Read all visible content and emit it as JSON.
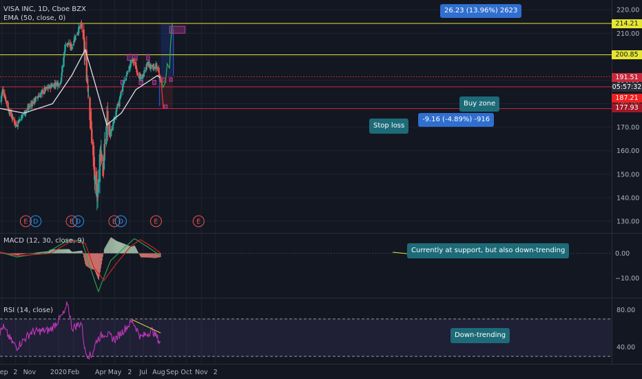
{
  "panes": {
    "price": {
      "title": "VISA INC, 1D, Cboe BZX",
      "indicator": "EMA (50, close, 0)"
    },
    "macd": {
      "title": "MACD (12, 30, close, 9)"
    },
    "rsi": {
      "title": "RSI (14, close)"
    }
  },
  "annotations": {
    "profit_box": "26.23 (13.96%) 2623",
    "loss_box": "-9.16 (-4.89%) -916",
    "buy_zone": "Buy zone",
    "stop_loss": "Stop loss",
    "macd_note": "Currently at support, but also down-trending",
    "rsi_note": "Down-trending"
  },
  "price_labels": {
    "top_line": "214.21",
    "resistance": "200.85",
    "current": "191.51",
    "countdown": "05:57:32",
    "support": "187.21",
    "stop": "177.93"
  },
  "colors": {
    "background": "#131722",
    "up": "#26a69a",
    "down": "#ef5350",
    "ema": "#e0e3eb",
    "yellow_line": "#e6e632",
    "red_line": "#c8283c",
    "macd_line": "#2e9e4f",
    "signal_line": "#c82828",
    "rsi_line": "#c238b8",
    "earnings_marker": "#ef5350",
    "dividend_marker": "#2196f3"
  },
  "events": [
    {
      "x": "2019-10-24",
      "letter": "E"
    },
    {
      "x": "2019-11-14",
      "letter": "D"
    },
    {
      "x": "2020-01-30",
      "letter": "E"
    },
    {
      "x": "2020-02-13",
      "letter": "D"
    },
    {
      "x": "2020-04-30",
      "letter": "E"
    },
    {
      "x": "2020-05-14",
      "letter": "D"
    },
    {
      "x": "2020-07-28",
      "letter": "E"
    },
    {
      "x": "2020-10-27",
      "letter": "E"
    }
  ],
  "chart_data": [
    {
      "type": "candlestick",
      "title": "VISA INC, 1D, Cboe BZX",
      "x_axis": {
        "ticks": [
          "Sep",
          "2",
          "Nov",
          "2020",
          "Feb",
          "Apr",
          "May",
          "2",
          "Jul",
          "Aug",
          "Sep",
          "Oct",
          "Nov",
          "2"
        ],
        "tick_dates": [
          "2019-09-03",
          "2019-10-02",
          "2019-11-01",
          "2020-01-02",
          "2020-02-03",
          "2020-04-01",
          "2020-05-01",
          "2020-06-02",
          "2020-07-01",
          "2020-08-03",
          "2020-09-01",
          "2020-10-01",
          "2020-11-02",
          "2020-12-02"
        ]
      },
      "y_axis": {
        "ticks": [
          130,
          140,
          150,
          160,
          170,
          180,
          190,
          200,
          210,
          220
        ],
        "range": [
          125,
          223
        ]
      },
      "ohlc_keyframes": [
        {
          "date": "2019-08-30",
          "close": 181
        },
        {
          "date": "2019-09-05",
          "close": 186
        },
        {
          "date": "2019-09-20",
          "close": 176
        },
        {
          "date": "2019-10-03",
          "close": 171
        },
        {
          "date": "2019-10-20",
          "close": 176
        },
        {
          "date": "2019-11-05",
          "close": 180
        },
        {
          "date": "2019-11-28",
          "close": 185
        },
        {
          "date": "2019-12-20",
          "close": 188
        },
        {
          "date": "2020-01-06",
          "close": 189
        },
        {
          "date": "2020-01-17",
          "close": 206
        },
        {
          "date": "2020-01-30",
          "close": 204
        },
        {
          "date": "2020-02-05",
          "close": 208
        },
        {
          "date": "2020-02-20",
          "close": 214
        },
        {
          "date": "2020-03-05",
          "close": 188
        },
        {
          "date": "2020-03-23",
          "close": 137
        },
        {
          "date": "2020-04-01",
          "close": 162
        },
        {
          "date": "2020-04-06",
          "close": 150
        },
        {
          "date": "2020-04-14",
          "close": 174
        },
        {
          "date": "2020-04-21",
          "close": 166
        },
        {
          "date": "2020-05-01",
          "close": 174
        },
        {
          "date": "2020-05-18",
          "close": 188
        },
        {
          "date": "2020-06-08",
          "close": 199
        },
        {
          "date": "2020-06-26",
          "close": 190
        },
        {
          "date": "2020-07-10",
          "close": 197
        },
        {
          "date": "2020-07-20",
          "close": 195
        },
        {
          "date": "2020-07-30",
          "close": 196
        },
        {
          "date": "2020-08-07",
          "close": 190
        }
      ],
      "series": [
        {
          "name": "EMA (50, close, 0)",
          "keyframes": [
            {
              "date": "2019-08-30",
              "value": 178
            },
            {
              "date": "2019-10-20",
              "value": 176
            },
            {
              "date": "2019-12-20",
              "value": 180
            },
            {
              "date": "2020-01-30",
              "value": 192
            },
            {
              "date": "2020-02-28",
              "value": 203
            },
            {
              "date": "2020-03-18",
              "value": 190
            },
            {
              "date": "2020-04-14",
              "value": 171
            },
            {
              "date": "2020-05-15",
              "value": 176
            },
            {
              "date": "2020-06-15",
              "value": 186
            },
            {
              "date": "2020-07-31",
              "value": 192
            },
            {
              "date": "2020-08-07",
              "value": 191
            }
          ]
        }
      ],
      "horizontal_lines": [
        214.21,
        200.85,
        191.51,
        187.21,
        177.93
      ],
      "projection": [
        {
          "date": "2020-08-07",
          "value": 191.51
        },
        {
          "date": "2020-08-12",
          "value": 187
        },
        {
          "date": "2020-08-17",
          "value": 189
        },
        {
          "date": "2020-08-21",
          "value": 197
        },
        {
          "date": "2020-08-26",
          "value": 195
        },
        {
          "date": "2020-08-28",
          "value": 205
        },
        {
          "date": "2020-09-01",
          "value": 214
        }
      ],
      "down_projection": [
        {
          "date": "2020-08-07",
          "value": 191.51
        },
        {
          "date": "2020-08-13",
          "value": 178
        }
      ]
    },
    {
      "type": "line",
      "title": "MACD (12, 30, close, 9)",
      "y_axis": {
        "ticks": [
          0.0,
          -10.0
        ],
        "tick_labels": [
          "0.00",
          "−10.00"
        ],
        "range": [
          -18,
          8
        ]
      },
      "series": [
        {
          "name": "MACD",
          "keyframes": [
            {
              "date": "2019-08-30",
              "value": 0.5
            },
            {
              "date": "2019-10-05",
              "value": -1.5
            },
            {
              "date": "2019-12-10",
              "value": 0.5
            },
            {
              "date": "2020-01-24",
              "value": 5.5
            },
            {
              "date": "2020-02-21",
              "value": 5
            },
            {
              "date": "2020-03-10",
              "value": -6
            },
            {
              "date": "2020-03-27",
              "value": -15.5
            },
            {
              "date": "2020-04-22",
              "value": -3
            },
            {
              "date": "2020-05-20",
              "value": 2
            },
            {
              "date": "2020-06-12",
              "value": 6
            },
            {
              "date": "2020-07-15",
              "value": 2
            },
            {
              "date": "2020-08-07",
              "value": -1
            }
          ]
        },
        {
          "name": "Signal",
          "keyframes": [
            {
              "date": "2019-08-30",
              "value": 0.5
            },
            {
              "date": "2019-10-10",
              "value": -1
            },
            {
              "date": "2019-12-15",
              "value": 0
            },
            {
              "date": "2020-01-30",
              "value": 5
            },
            {
              "date": "2020-02-28",
              "value": 4
            },
            {
              "date": "2020-03-18",
              "value": -6
            },
            {
              "date": "2020-04-08",
              "value": -11
            },
            {
              "date": "2020-05-05",
              "value": -4
            },
            {
              "date": "2020-06-05",
              "value": 3
            },
            {
              "date": "2020-06-25",
              "value": 5.5
            },
            {
              "date": "2020-07-25",
              "value": 2
            },
            {
              "date": "2020-08-07",
              "value": 0
            }
          ]
        }
      ]
    },
    {
      "type": "line",
      "title": "RSI (14, close)",
      "y_axis": {
        "ticks": [
          40.0,
          80.0
        ],
        "tick_labels": [
          "40.00",
          "80.00"
        ],
        "range": [
          22,
          92
        ],
        "bands": [
          30,
          70
        ]
      },
      "series": [
        {
          "name": "RSI",
          "keyframes": [
            {
              "date": "2019-08-30",
              "value": 55
            },
            {
              "date": "2019-09-05",
              "value": 62
            },
            {
              "date": "2019-09-25",
              "value": 45
            },
            {
              "date": "2019-10-05",
              "value": 40
            },
            {
              "date": "2019-11-05",
              "value": 56
            },
            {
              "date": "2019-12-15",
              "value": 58
            },
            {
              "date": "2020-01-17",
              "value": 78
            },
            {
              "date": "2020-01-21",
              "value": 88
            },
            {
              "date": "2020-01-31",
              "value": 60
            },
            {
              "date": "2020-02-20",
              "value": 66
            },
            {
              "date": "2020-02-28",
              "value": 34
            },
            {
              "date": "2020-03-12",
              "value": 30
            },
            {
              "date": "2020-03-24",
              "value": 48
            },
            {
              "date": "2020-04-10",
              "value": 55
            },
            {
              "date": "2020-05-01",
              "value": 48
            },
            {
              "date": "2020-06-08",
              "value": 68
            },
            {
              "date": "2020-06-26",
              "value": 50
            },
            {
              "date": "2020-07-20",
              "value": 58
            },
            {
              "date": "2020-08-07",
              "value": 44
            }
          ]
        }
      ],
      "trendline": [
        {
          "date": "2020-06-08",
          "value": 69
        },
        {
          "date": "2020-08-07",
          "value": 55
        }
      ]
    }
  ]
}
